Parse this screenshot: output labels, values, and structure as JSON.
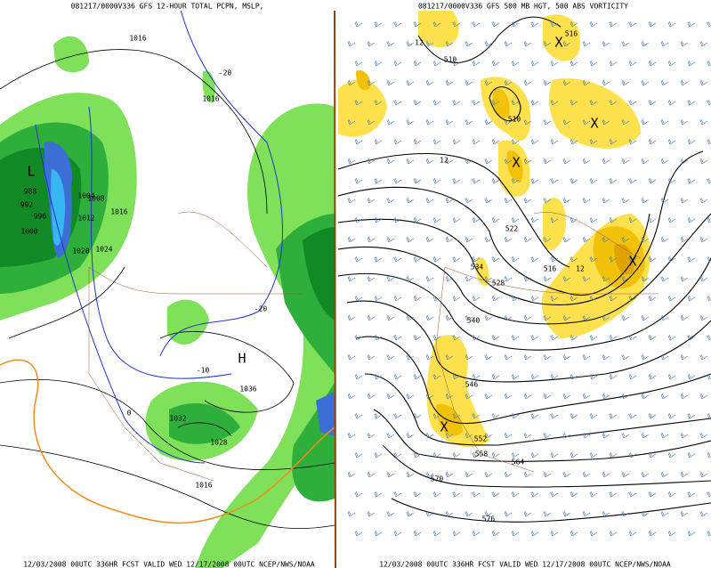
{
  "left": {
    "title": "081217/0000V336 GFS 12-HOUR TOTAL PCPN, MSLP,",
    "labels": [
      "1016",
      "1016",
      "L",
      "988",
      "992",
      "996",
      "1000",
      "1004",
      "1008",
      "1012",
      "1016",
      "1020",
      "1024",
      "H",
      "1036",
      "1032",
      "1028",
      "1016",
      "-20",
      "-20",
      "-10",
      "0"
    ]
  },
  "right": {
    "title": "081217/0000V336 GFS 500 MB HGT, 500 ABS VORTICITY",
    "labels": [
      "516",
      "510",
      "510",
      "522",
      "534",
      "528",
      "516",
      "540",
      "546",
      "552",
      "558",
      "564",
      "570",
      "576",
      "X",
      "X",
      "X",
      "X",
      "X",
      "12",
      "12",
      "12"
    ]
  },
  "footer": "12/03/2008 00UTC 336HR FCST VALID WED 12/17/2008 00UTC NCEP/NWS/NOAA"
}
